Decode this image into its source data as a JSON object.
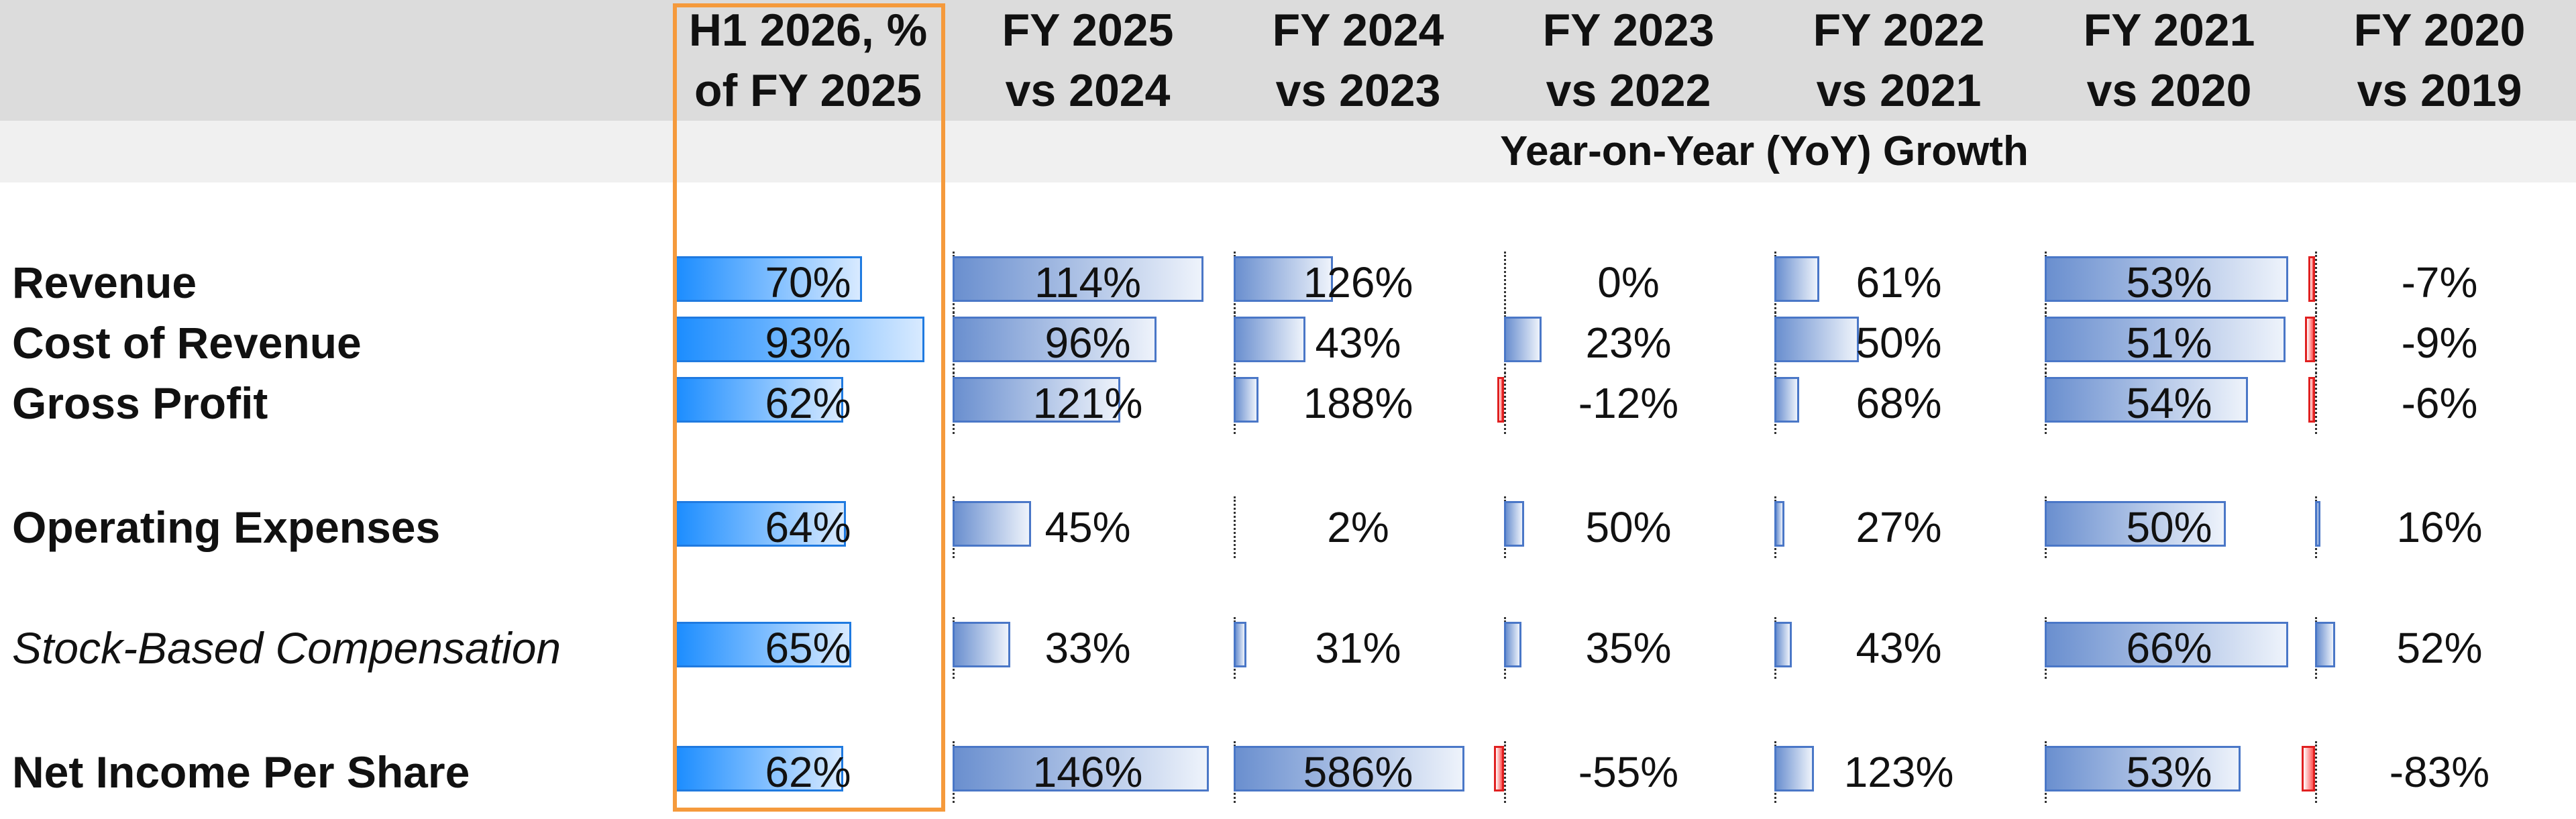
{
  "columns": [
    {
      "line1": "H1 2026, %",
      "line2": "of FY 2025"
    },
    {
      "line1": "FY 2025",
      "line2": "vs 2024"
    },
    {
      "line1": "FY 2024",
      "line2": "vs 2023"
    },
    {
      "line1": "FY 2023",
      "line2": "vs 2022"
    },
    {
      "line1": "FY 2022",
      "line2": "vs 2021"
    },
    {
      "line1": "FY 2021",
      "line2": "vs 2020"
    },
    {
      "line1": "FY 2020",
      "line2": "vs 2019"
    }
  ],
  "subheader": "Year-on-Year (YoY) Growth",
  "rows": [
    {
      "label": "Revenue",
      "italic": false,
      "values": [
        "70%",
        "114%",
        "126%",
        "0%",
        "61%",
        "53%",
        "-7%"
      ]
    },
    {
      "label": "Cost of Revenue",
      "italic": false,
      "values": [
        "93%",
        "96%",
        "43%",
        "23%",
        "50%",
        "51%",
        "-9%"
      ]
    },
    {
      "label": "Gross Profit",
      "italic": false,
      "values": [
        "62%",
        "121%",
        "188%",
        "-12%",
        "68%",
        "54%",
        "-6%"
      ]
    },
    {
      "label": "Operating Expenses",
      "italic": false,
      "values": [
        "64%",
        "45%",
        "2%",
        "50%",
        "27%",
        "50%",
        "16%"
      ]
    },
    {
      "label": "Stock-Based Compensation",
      "italic": true,
      "values": [
        "65%",
        "33%",
        "31%",
        "35%",
        "43%",
        "66%",
        "52%"
      ]
    },
    {
      "label": "Net Income Per Share",
      "italic": false,
      "values": [
        "62%",
        "146%",
        "586%",
        "-55%",
        "123%",
        "53%",
        "-83%"
      ]
    }
  ],
  "bars": [
    [
      0.7,
      0.96,
      0.4,
      0.0,
      0.18,
      0.98,
      -0.06
    ],
    [
      0.93,
      0.78,
      0.29,
      0.15,
      0.34,
      0.97,
      -0.09
    ],
    [
      0.63,
      0.64,
      0.1,
      -0.02,
      0.1,
      0.82,
      -0.02
    ],
    [
      0.64,
      0.3,
      0.0,
      0.08,
      0.04,
      0.73,
      0.02
    ],
    [
      0.66,
      0.22,
      0.05,
      0.07,
      0.07,
      0.98,
      0.08
    ],
    [
      0.63,
      0.98,
      0.93,
      -0.09,
      0.16,
      0.79,
      -0.12
    ]
  ],
  "colors": {
    "header_bg": "#dcdcdc",
    "highlight": "#f59a3c",
    "primary_bar": "#1a8cff",
    "positive_bar": "#6a8fcf",
    "negative_bar": "#ff5555"
  }
}
